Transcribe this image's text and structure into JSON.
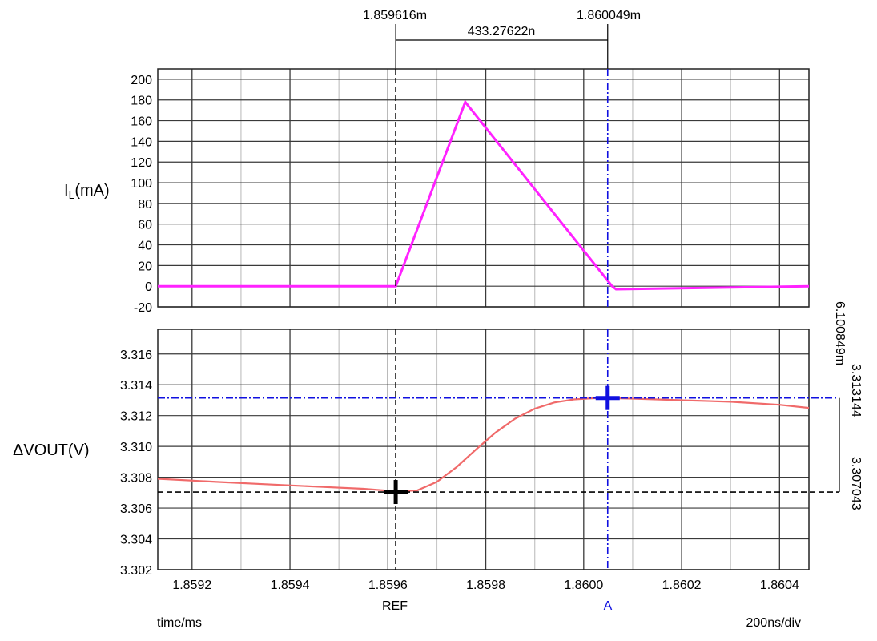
{
  "colors": {
    "current_trace": "#ff22ff",
    "voltage_trace": "#f06a6a",
    "cursor_a": "#1010e0",
    "cursor_ref": "#000000",
    "grid_major": "#3a3a3a",
    "grid_minor": "#c8c8c8"
  },
  "cursors": {
    "ref_time_label": "1.859616m",
    "a_time_label": "1.860049m",
    "delta_time_label": "433.27622n",
    "ref_marker": "REF",
    "a_marker": "A",
    "ref_value_label": "3.307043",
    "a_value_label": "3.313144",
    "delta_value_label": "6.100849m"
  },
  "footer": {
    "xunit": "time/ms",
    "timebase": "200ns/div"
  },
  "chart_data": [
    {
      "type": "line",
      "ylabel_main": "I",
      "ylabel_sub": "L",
      "ylabel_unit": "(mA)",
      "xlim": [
        1.85913,
        1.86046
      ],
      "ylim": [
        -20,
        210
      ],
      "yticks": [
        200,
        180,
        160,
        140,
        120,
        100,
        80,
        60,
        40,
        20,
        0,
        -20
      ],
      "ytick_labels": [
        "200",
        "180",
        "160",
        "140",
        "120",
        "100",
        "80",
        "60",
        "40",
        "20",
        "0",
        "-20"
      ],
      "grid": true,
      "series": [
        {
          "x": [
            1.85913,
            1.859616,
            1.859758,
            1.860058,
            1.860066,
            1.86046
          ],
          "y": [
            0,
            0,
            178,
            0,
            -3,
            0
          ]
        }
      ]
    },
    {
      "type": "line",
      "ylabel": "ΔVOUT(V)",
      "xlim": [
        1.85913,
        1.86046
      ],
      "ylim": [
        3.302,
        3.3176
      ],
      "yticks": [
        3.316,
        3.314,
        3.312,
        3.31,
        3.308,
        3.306,
        3.304,
        3.302
      ],
      "ytick_labels": [
        "3.316",
        "3.314",
        "3.312",
        "3.310",
        "3.308",
        "3.306",
        "3.304",
        "3.302"
      ],
      "xticks": [
        1.8592,
        1.8594,
        1.8596,
        1.8598,
        1.86,
        1.8602,
        1.8604
      ],
      "xtick_labels": [
        "1.8592",
        "1.8594",
        "1.8596",
        "1.8598",
        "1.8600",
        "1.8602",
        "1.8604"
      ],
      "grid": true,
      "series": [
        {
          "x": [
            1.85913,
            1.85925,
            1.85935,
            1.85945,
            1.85955,
            1.85962,
            1.85966,
            1.8597,
            1.85974,
            1.85978,
            1.85982,
            1.85986,
            1.8599,
            1.85994,
            1.85998,
            1.86002,
            1.86005,
            1.8601,
            1.8602,
            1.8603,
            1.8604,
            1.86046
          ],
          "y": [
            3.3079,
            3.3077,
            3.30755,
            3.3074,
            3.30725,
            3.30708,
            3.30715,
            3.3077,
            3.30865,
            3.3098,
            3.3109,
            3.3118,
            3.31245,
            3.31285,
            3.31305,
            3.31313,
            3.31314,
            3.3131,
            3.313,
            3.3129,
            3.3127,
            3.3125
          ]
        }
      ],
      "cursor_ref": {
        "x": 1.859616,
        "y": 3.307043
      },
      "cursor_a": {
        "x": 1.860049,
        "y": 3.313144
      }
    }
  ]
}
